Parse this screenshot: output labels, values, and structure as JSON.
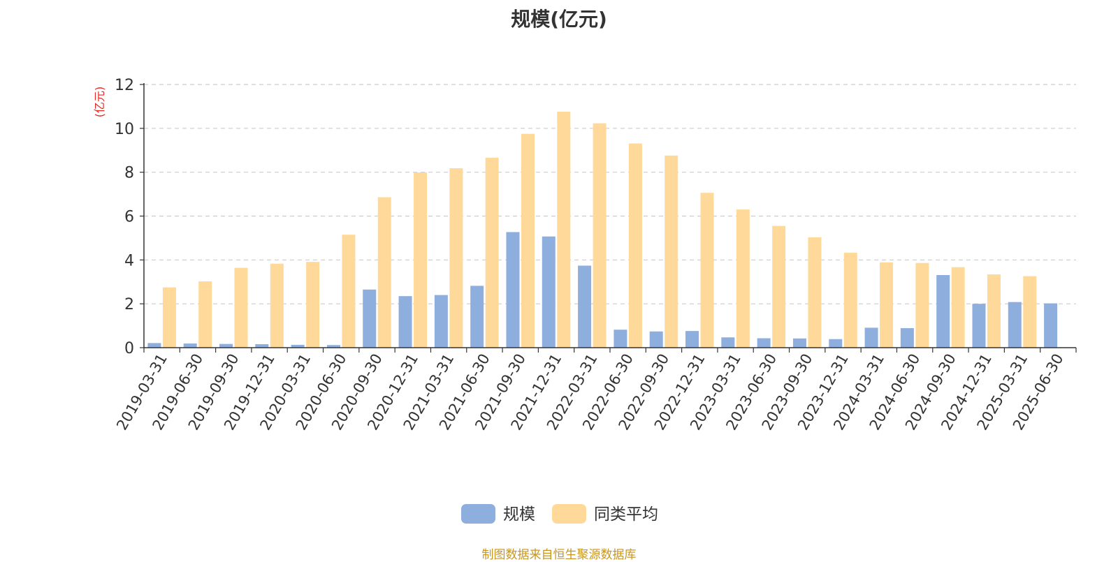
{
  "chart_data": {
    "type": "bar",
    "title": "规模(亿元)",
    "ylabel": "(亿元)",
    "xlabel": "",
    "ylim": [
      0,
      12
    ],
    "yticks": [
      0,
      2,
      4,
      6,
      8,
      10,
      12
    ],
    "grid": true,
    "legend_position": "bottom-center",
    "categories": [
      "2019-03-31",
      "2019-06-30",
      "2019-09-30",
      "2019-12-31",
      "2020-03-31",
      "2020-06-30",
      "2020-09-30",
      "2020-12-31",
      "2021-03-31",
      "2021-06-30",
      "2021-09-30",
      "2021-12-31",
      "2022-03-31",
      "2022-06-30",
      "2022-09-30",
      "2022-12-31",
      "2023-03-31",
      "2023-06-30",
      "2023-09-30",
      "2023-12-31",
      "2024-03-31",
      "2024-06-30",
      "2024-09-30",
      "2024-12-31",
      "2025-03-31",
      "2025-06-30"
    ],
    "series": [
      {
        "name": "规模",
        "color": "#8eaedd",
        "values": [
          0.21,
          0.19,
          0.17,
          0.16,
          0.13,
          0.12,
          2.65,
          2.35,
          2.4,
          2.82,
          5.27,
          5.07,
          3.74,
          0.82,
          0.74,
          0.76,
          0.47,
          0.43,
          0.42,
          0.39,
          0.91,
          0.89,
          3.31,
          2.0,
          2.08,
          2.02
        ]
      },
      {
        "name": "同类平均",
        "color": "#ffd99a",
        "values": [
          2.75,
          3.02,
          3.64,
          3.83,
          3.91,
          5.15,
          6.86,
          7.99,
          8.18,
          8.66,
          9.75,
          10.76,
          10.23,
          9.31,
          8.76,
          7.06,
          6.3,
          5.55,
          5.03,
          4.33,
          3.89,
          3.86,
          3.67,
          3.34,
          3.26,
          null
        ]
      }
    ]
  },
  "footer": {
    "source": "制图数据来自恒生聚源数据库"
  }
}
